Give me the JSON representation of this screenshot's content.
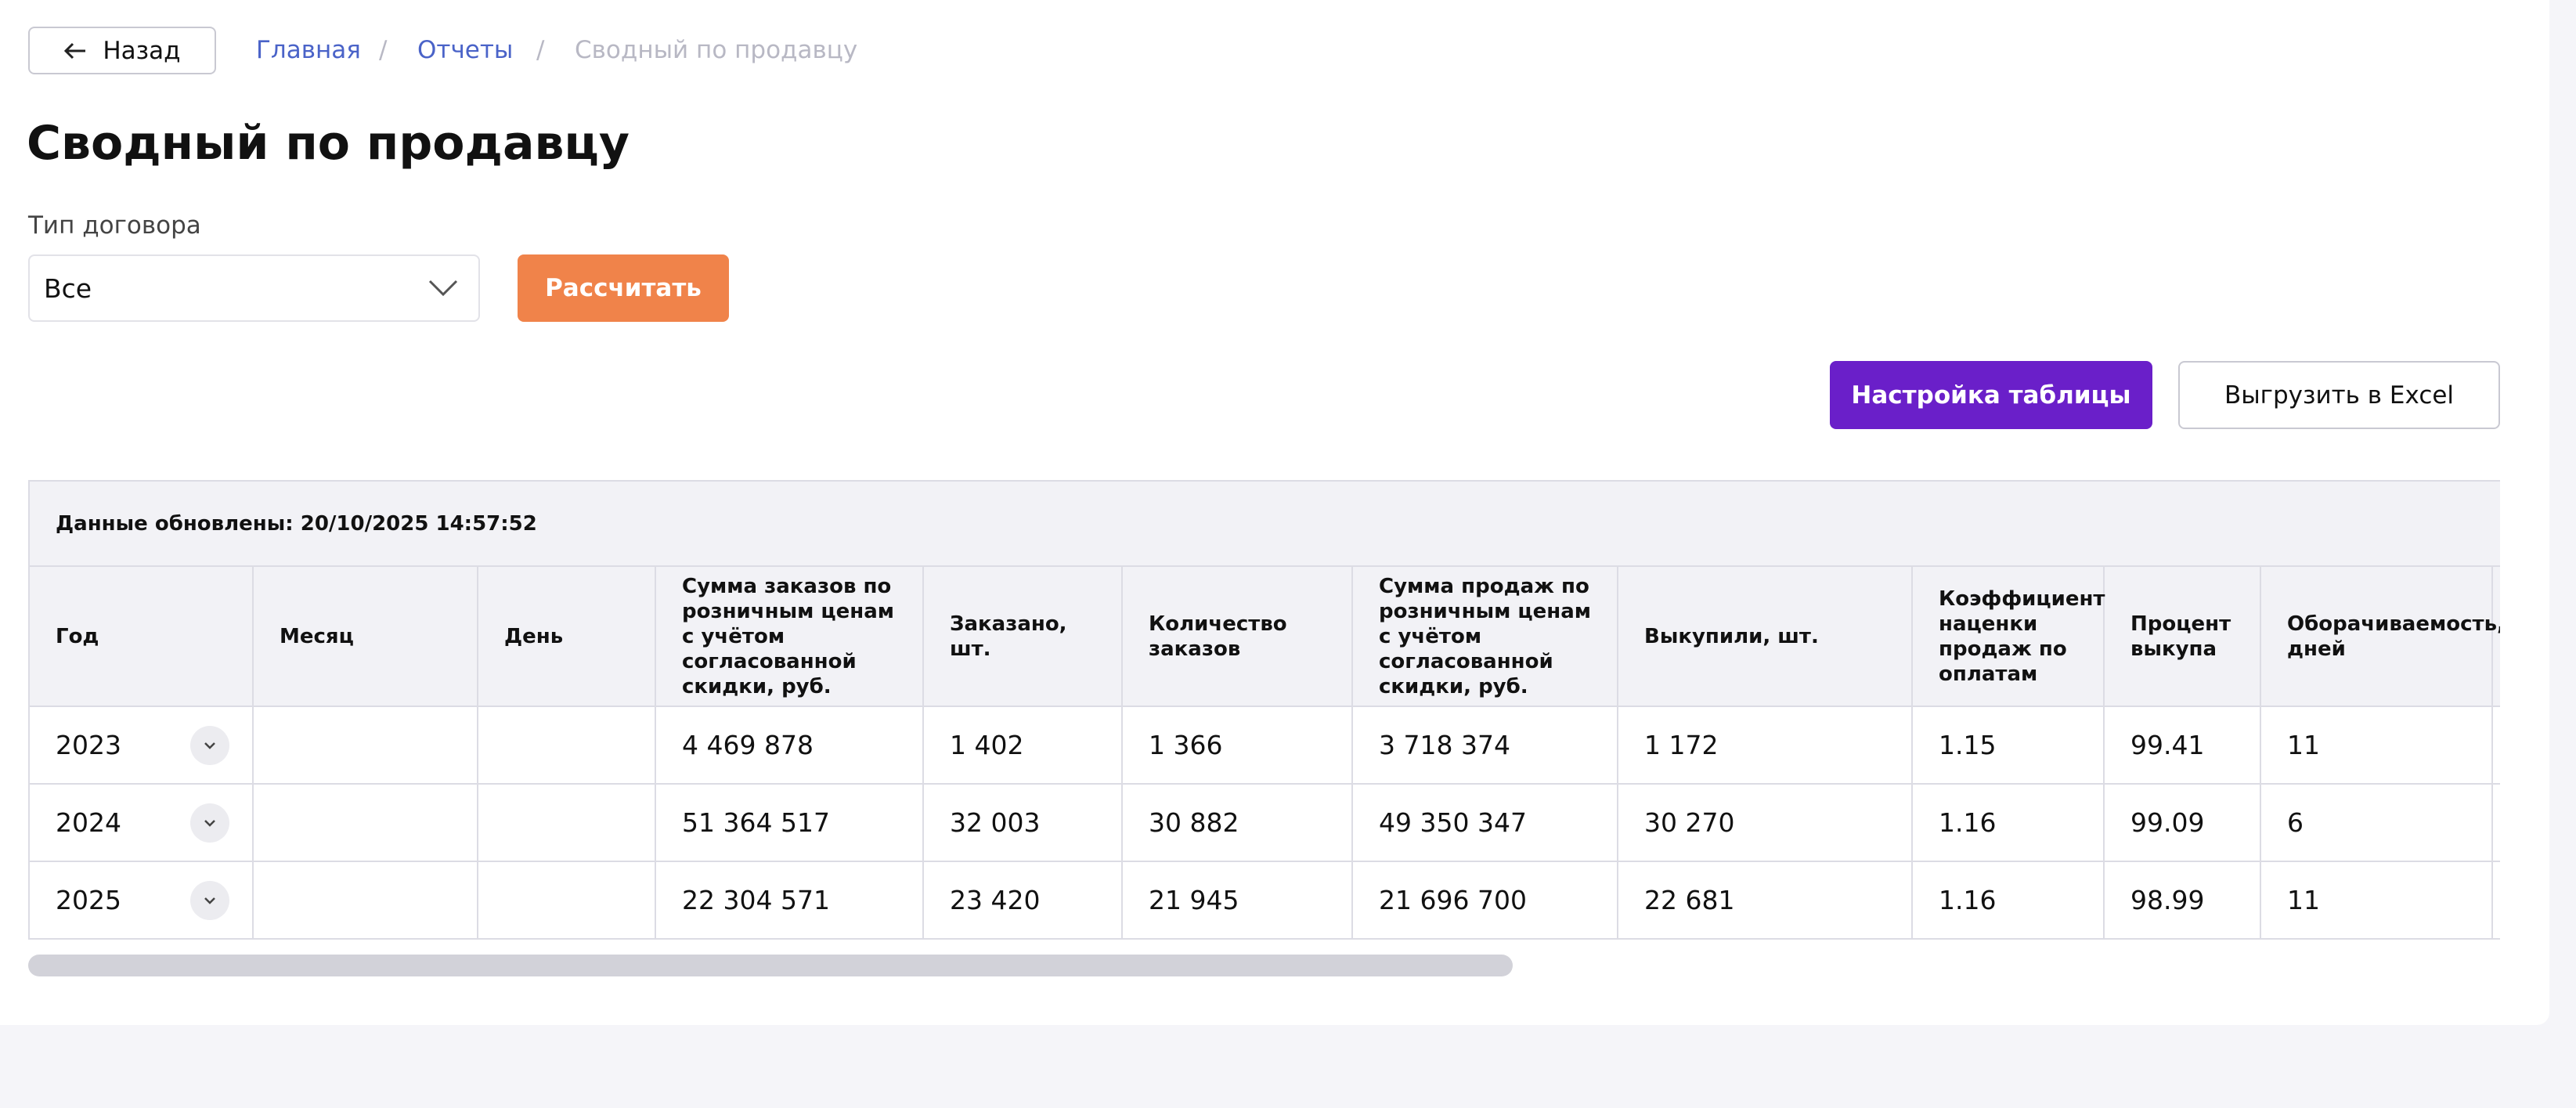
{
  "header": {
    "back": "Назад",
    "breadcrumbs": [
      "Главная",
      "Отчеты",
      "Сводный по продавцу"
    ],
    "separator": "/"
  },
  "title": "Сводный по продавцу",
  "filter": {
    "label": "Тип договора",
    "value": "Все",
    "calculate": "Рассчитать"
  },
  "actions": {
    "settings": "Настройка таблицы",
    "export": "Выгрузить в Excel"
  },
  "table": {
    "updated": "Данные обновлены: 20/10/2025 14:57:52",
    "columns": [
      "Год",
      "Месяц",
      "День",
      "Сумма заказов по розничным ценам с учётом согласованной скидки, руб.",
      "Заказано, шт.",
      "Количество заказов",
      "Сумма продаж по розничным ценам с учётом согласованной скидки, руб.",
      "Выкупили, шт.",
      "Коэффициент наценки продаж по оплатам",
      "Процент выкупа",
      "Оборачиваемость, дней"
    ],
    "rows": [
      [
        "2023",
        null,
        null,
        "4 469 878",
        "1 402",
        "1 366",
        "3 718 374",
        "1 172",
        "1.15",
        "99.41",
        "11"
      ],
      [
        "2024",
        null,
        null,
        "51 364 517",
        "32 003",
        "30 882",
        "49 350 347",
        "30 270",
        "1.16",
        "99.09",
        "6"
      ],
      [
        "2025",
        null,
        null,
        "22 304 571",
        "23 420",
        "21 945",
        "21 696 700",
        "22 681",
        "1.16",
        "98.99",
        "11"
      ]
    ]
  }
}
